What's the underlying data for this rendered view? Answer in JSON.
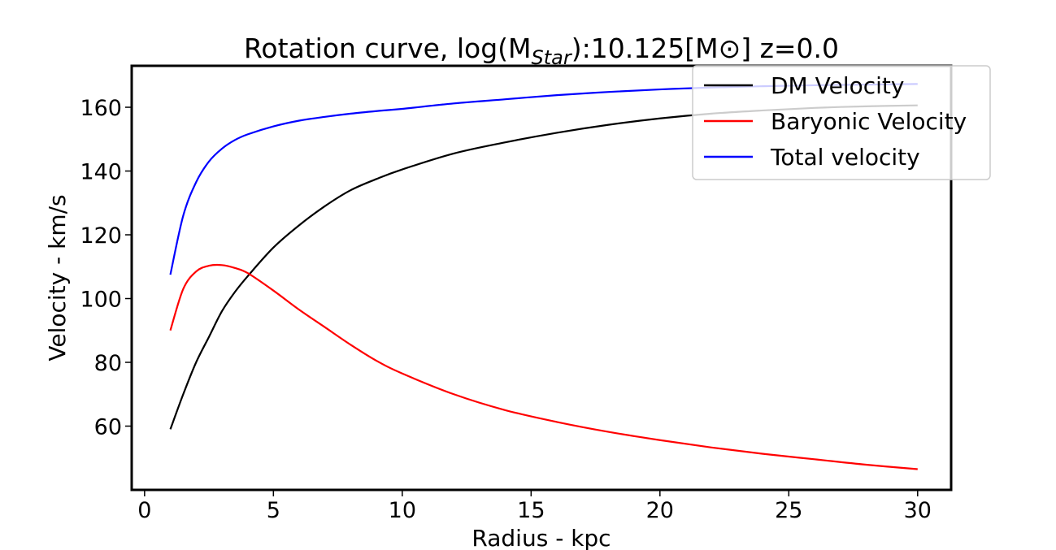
{
  "chart_data": {
    "type": "line",
    "title": {
      "prefix": "Rotation curve, log(M",
      "subscript": "Star",
      "middle": "):10.125[M",
      "symbol": "⊙",
      "suffix": "] z=0.0"
    },
    "xlabel": "Radius - kpc",
    "ylabel": "Velocity - km/s",
    "xlim": [
      -0.5,
      31.3
    ],
    "ylim": [
      40,
      173
    ],
    "x_ticks": [
      0,
      5,
      10,
      15,
      20,
      25,
      30
    ],
    "y_ticks": [
      60,
      80,
      100,
      120,
      140,
      160
    ],
    "x_tick_labels": [
      "0",
      "5",
      "10",
      "15",
      "20",
      "25",
      "30"
    ],
    "y_tick_labels": [
      "60",
      "80",
      "100",
      "120",
      "140",
      "160"
    ],
    "grid": false,
    "legend_position": "top-right",
    "x": [
      1,
      1.5,
      2,
      2.5,
      3,
      3.5,
      4,
      5,
      6,
      7,
      8,
      9,
      10,
      12,
      14,
      16,
      18,
      20,
      22,
      24,
      26,
      28,
      30
    ],
    "series": [
      {
        "name": "DM Velocity",
        "color": "#000000",
        "values": [
          59,
          70,
          80,
          88,
          96,
          102,
          107,
          116,
          123,
          129,
          134,
          137.5,
          140.5,
          145.5,
          149,
          152,
          154.5,
          156.5,
          158,
          159,
          159.8,
          160.3,
          160.6
        ]
      },
      {
        "name": "Baryonic Velocity",
        "color": "#ff0000",
        "values": [
          90,
          103,
          108.5,
          110.3,
          110.5,
          109.6,
          108,
          102.5,
          96.5,
          91,
          85.5,
          80.5,
          76.5,
          70,
          65,
          61.3,
          58.2,
          55.6,
          53.3,
          51.3,
          49.6,
          47.9,
          46.5
        ]
      },
      {
        "name": "Total velocity",
        "color": "#0000ff",
        "values": [
          107.5,
          126,
          136.5,
          143,
          147,
          149.7,
          151.5,
          154,
          155.8,
          157,
          158,
          158.8,
          159.5,
          161.2,
          162.5,
          163.8,
          164.8,
          165.6,
          166.2,
          166.6,
          166.9,
          167.1,
          167.3
        ]
      }
    ]
  }
}
